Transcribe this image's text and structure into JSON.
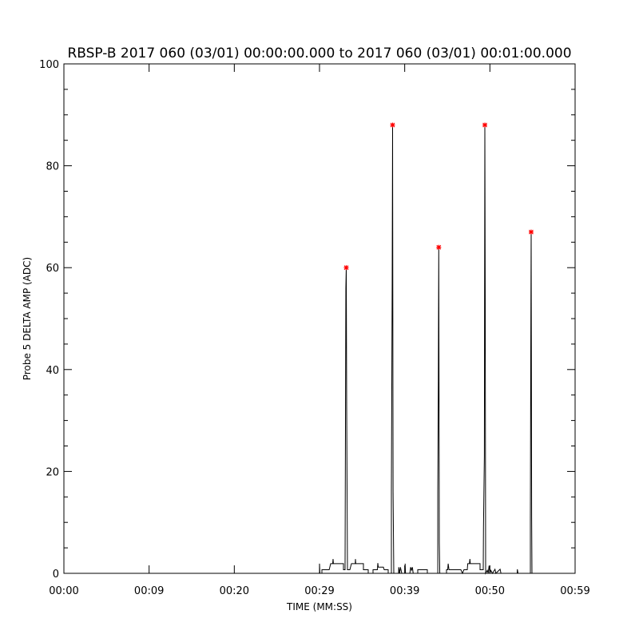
{
  "chart_data": {
    "type": "line",
    "title": "RBSP-B 2017 060 (03/01) 00:00:00.000 to 2017 060 (03/01) 00:01:00.000",
    "xlabel": "TIME (MM:SS)",
    "ylabel": "Probe 5 DELTA AMP (ADC)",
    "xlim": [
      0,
      60
    ],
    "ylim": [
      0,
      100
    ],
    "x_ticks": [
      0,
      10,
      20,
      30,
      40,
      50,
      60
    ],
    "x_tick_labels": [
      "00:00",
      "00:09",
      "00:20",
      "00:29",
      "00:39",
      "00:50",
      "00:59"
    ],
    "y_ticks": [
      0,
      20,
      40,
      60,
      80,
      100
    ],
    "y_tick_labels": [
      "0",
      "20",
      "40",
      "60",
      "80",
      "100"
    ],
    "grid": false,
    "line_color": "#000000",
    "marker_color": "#ff0000",
    "series": [
      {
        "points": [
          [
            0,
            0
          ],
          [
            30.0,
            0
          ],
          [
            30.0,
            1.9
          ],
          [
            30.05,
            0
          ],
          [
            30.28,
            0
          ],
          [
            30.28,
            0.7
          ],
          [
            31.13,
            0.7
          ],
          [
            31.31,
            1.9
          ],
          [
            31.55,
            1.9
          ],
          [
            31.59,
            2.8
          ],
          [
            31.63,
            1.9
          ],
          [
            32.81,
            1.9
          ],
          [
            32.81,
            0.7
          ],
          [
            33.0,
            0.7
          ],
          [
            33.09,
            56
          ],
          [
            33.14,
            60
          ],
          [
            33.19,
            33
          ],
          [
            33.28,
            0.7
          ],
          [
            33.56,
            0.7
          ],
          [
            33.75,
            1.9
          ],
          [
            34.2,
            1.9
          ],
          [
            34.22,
            2.8
          ],
          [
            34.26,
            1.9
          ],
          [
            35.16,
            1.9
          ],
          [
            35.16,
            0.7
          ],
          [
            35.72,
            0.7
          ],
          [
            35.72,
            0
          ],
          [
            36.28,
            0
          ],
          [
            36.28,
            0.7
          ],
          [
            36.8,
            0.7
          ],
          [
            36.84,
            2.0
          ],
          [
            36.9,
            1.2
          ],
          [
            37.5,
            1.2
          ],
          [
            37.59,
            0.7
          ],
          [
            38.06,
            0.7
          ],
          [
            38.06,
            0
          ],
          [
            38.44,
            0
          ],
          [
            38.44,
            16
          ],
          [
            38.53,
            57
          ],
          [
            38.58,
            88
          ],
          [
            38.63,
            16
          ],
          [
            38.72,
            0
          ],
          [
            39.28,
            0
          ],
          [
            39.3,
            1.2
          ],
          [
            39.4,
            0
          ],
          [
            39.5,
            1.2
          ],
          [
            39.66,
            0
          ],
          [
            40.03,
            0
          ],
          [
            40.05,
            1.9
          ],
          [
            40.1,
            0
          ],
          [
            40.6,
            0
          ],
          [
            40.7,
            1.2
          ],
          [
            40.8,
            0.6
          ],
          [
            40.9,
            1.2
          ],
          [
            41.0,
            0
          ],
          [
            41.53,
            0
          ],
          [
            41.53,
            0.7
          ],
          [
            42.66,
            0.7
          ],
          [
            42.66,
            0
          ],
          [
            43.88,
            0
          ],
          [
            43.88,
            16
          ],
          [
            43.95,
            38
          ],
          [
            44.0,
            64
          ],
          [
            44.06,
            6
          ],
          [
            44.12,
            0
          ],
          [
            44.91,
            0
          ],
          [
            44.91,
            0.7
          ],
          [
            45.05,
            0.7
          ],
          [
            45.1,
            1.9
          ],
          [
            45.2,
            0.7
          ],
          [
            46.59,
            0.7
          ],
          [
            46.78,
            0
          ],
          [
            46.95,
            0.7
          ],
          [
            47.34,
            0.7
          ],
          [
            47.4,
            1.9
          ],
          [
            47.6,
            1.9
          ],
          [
            47.65,
            2.8
          ],
          [
            47.7,
            1.9
          ],
          [
            48.84,
            1.9
          ],
          [
            48.84,
            0.7
          ],
          [
            49.22,
            0.7
          ],
          [
            49.25,
            9
          ],
          [
            49.35,
            23
          ],
          [
            49.41,
            88
          ],
          [
            49.45,
            53
          ],
          [
            49.5,
            0
          ],
          [
            49.7,
            0.6
          ],
          [
            49.8,
            0
          ],
          [
            49.9,
            1.5
          ],
          [
            50.0,
            0
          ],
          [
            50.1,
            0.6
          ],
          [
            50.3,
            0
          ],
          [
            50.6,
            0.8
          ],
          [
            50.7,
            0
          ],
          [
            51.2,
            0.8
          ],
          [
            51.3,
            0
          ],
          [
            53.2,
            0
          ],
          [
            53.22,
            0.8
          ],
          [
            53.3,
            0
          ],
          [
            54.75,
            0
          ],
          [
            54.75,
            10
          ],
          [
            54.8,
            43
          ],
          [
            54.84,
            67
          ],
          [
            54.9,
            11
          ],
          [
            54.94,
            0
          ],
          [
            60,
            0
          ]
        ]
      }
    ],
    "peaks": [
      [
        33.14,
        60
      ],
      [
        38.58,
        88
      ],
      [
        44.0,
        64
      ],
      [
        49.41,
        88
      ],
      [
        54.84,
        67
      ]
    ]
  }
}
